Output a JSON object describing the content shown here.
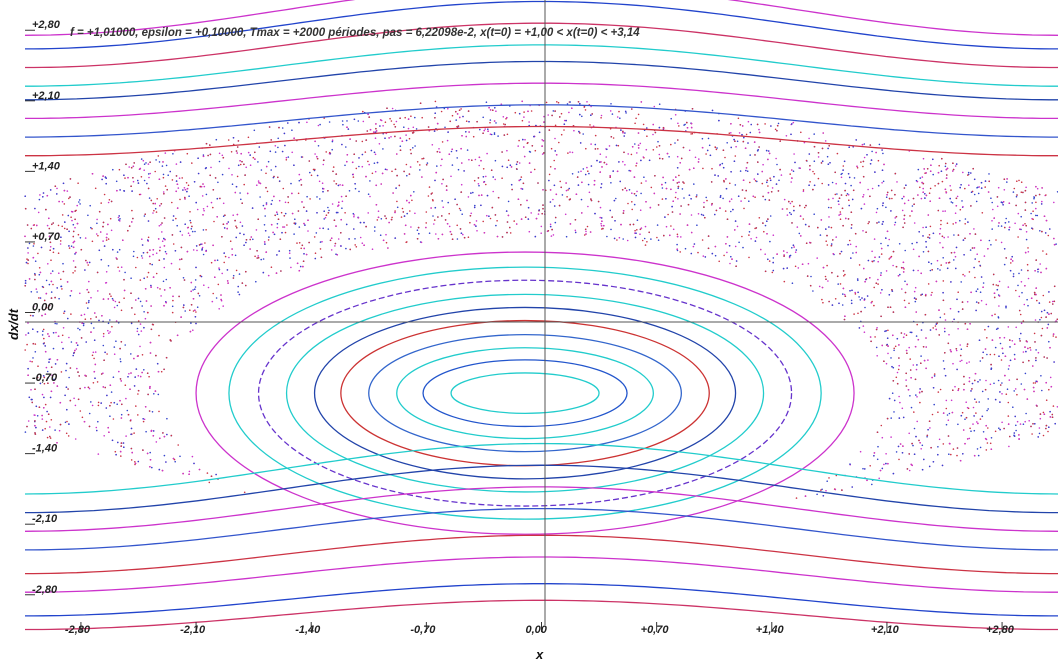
{
  "chart_data": {
    "type": "scatter",
    "title": "f = +1,01000, epsilon = +0,10000, Tmax = +2000 périodes, pas = 6,22098e-2, x(t=0) = +1,00 < x(t=0) < +3,14",
    "xlabel": "x",
    "ylabel": "dx/dt",
    "xlim": [
      -3.14,
      3.14
    ],
    "ylim": [
      -3.1,
      3.1
    ],
    "x_ticks": [
      "-2,80",
      "-2,10",
      "-1,40",
      "-0,70",
      "0,00",
      "+0,70",
      "+1,40",
      "+2,10",
      "+2,80"
    ],
    "y_ticks": [
      "+2,80",
      "+2,10",
      "+1,40",
      "+0,70",
      "0,00",
      "-0,70",
      "-1,40",
      "-2,10",
      "-2,80"
    ],
    "grid": false,
    "legend": "none",
    "series": [
      {
        "kind": "chaotic-sea",
        "colors": [
          "#cc33cc",
          "#3344cc",
          "#cc3344"
        ]
      },
      {
        "kind": "island-orbits",
        "center": [
          -0.1,
          -0.8
        ],
        "radii": [
          [
            0.45,
            0.2
          ],
          [
            0.62,
            0.33
          ],
          [
            0.78,
            0.45
          ],
          [
            0.95,
            0.58
          ],
          [
            1.12,
            0.72
          ],
          [
            1.28,
            0.85
          ],
          [
            1.45,
            0.98
          ],
          [
            1.62,
            1.12
          ],
          [
            1.8,
            1.25
          ],
          [
            2.0,
            1.4
          ]
        ],
        "colors": [
          "#22cccc",
          "#2255cc",
          "#22cccc",
          "#3366cc",
          "#cc3333",
          "#2244aa",
          "#22cccc",
          "#6633cc",
          "#22cccc",
          "#cc33cc"
        ]
      },
      {
        "kind": "rotation-orbits",
        "levels_top": [
          3.0,
          2.85,
          2.65,
          2.45,
          2.3,
          2.1,
          1.9,
          1.7
        ],
        "levels_bottom": [
          -1.55,
          -1.75,
          -1.95,
          -2.15,
          -2.4,
          -2.6,
          -2.85,
          -3.0
        ],
        "colors": [
          "#cc33cc",
          "#2244cc",
          "#cc3366",
          "#22cccc",
          "#2244aa",
          "#cc33cc",
          "#3355cc",
          "#cc3344"
        ]
      }
    ]
  }
}
